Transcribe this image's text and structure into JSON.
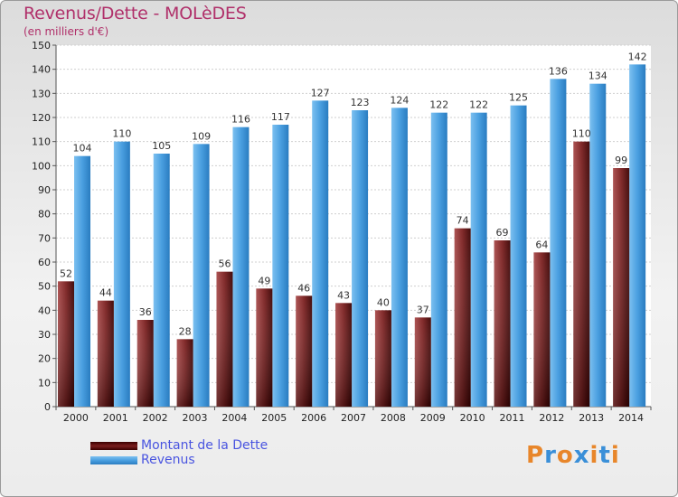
{
  "header": {
    "title": "Revenus/Dette - MOLèDES",
    "subtitle": "(en milliers d'€)"
  },
  "legend": {
    "items": [
      {
        "label": "Montant de la Dette",
        "color": "#7a1e1e"
      },
      {
        "label": "Revenus",
        "color": "#4a9fe0"
      }
    ]
  },
  "logo": {
    "text": "Proxiti",
    "colors": [
      "#e8862a",
      "#3a8fd8",
      "#e8862a",
      "#3a8fd8",
      "#e8862a",
      "#3a8fd8",
      "#e8862a"
    ]
  },
  "chart_data": {
    "type": "bar",
    "categories": [
      "2000",
      "2001",
      "2002",
      "2003",
      "2004",
      "2005",
      "2006",
      "2007",
      "2008",
      "2009",
      "2010",
      "2011",
      "2012",
      "2013",
      "2014"
    ],
    "series": [
      {
        "name": "Montant de la Dette",
        "color": "#7a1e1e",
        "values": [
          52,
          44,
          36,
          28,
          56,
          49,
          46,
          43,
          40,
          37,
          74,
          69,
          64,
          110,
          99
        ]
      },
      {
        "name": "Revenus",
        "color": "#4a9fe0",
        "values": [
          104,
          110,
          105,
          109,
          116,
          117,
          127,
          123,
          124,
          122,
          122,
          125,
          136,
          134,
          142
        ]
      }
    ],
    "ylim": [
      0,
      150
    ],
    "yticks": [
      0,
      10,
      20,
      30,
      40,
      50,
      60,
      70,
      80,
      90,
      100,
      110,
      120,
      130,
      140,
      150
    ],
    "grid": true,
    "legend_position": "bottom-left"
  }
}
